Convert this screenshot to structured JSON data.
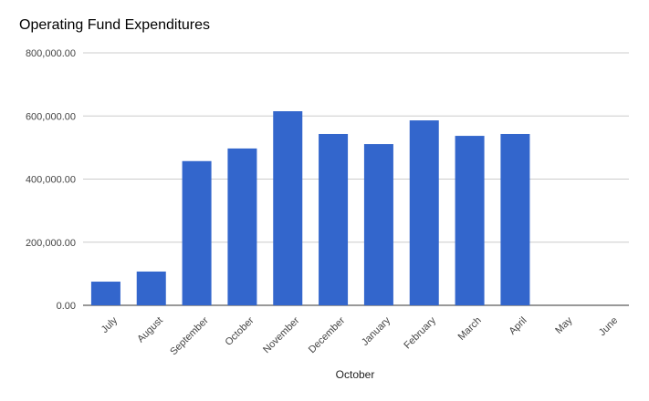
{
  "chart_data": {
    "type": "bar",
    "title": "Operating Fund Expenditures",
    "xlabel": "October",
    "ylabel": "",
    "categories": [
      "July",
      "August",
      "September",
      "October",
      "November",
      "December",
      "January",
      "February",
      "March",
      "April",
      "May",
      "June"
    ],
    "values": [
      75000,
      107000,
      457000,
      497000,
      615000,
      543000,
      511000,
      586000,
      537000,
      543000,
      0,
      0
    ],
    "ylim": [
      0,
      800000
    ],
    "yticks": [
      0,
      200000,
      400000,
      600000,
      800000
    ],
    "ytick_labels": [
      "0.00",
      "200,000.00",
      "400,000.00",
      "600,000.00",
      "800,000.00"
    ],
    "grid": true,
    "legend": "none",
    "bar_color": "#3366cc",
    "grid_color": "#cccccc"
  }
}
